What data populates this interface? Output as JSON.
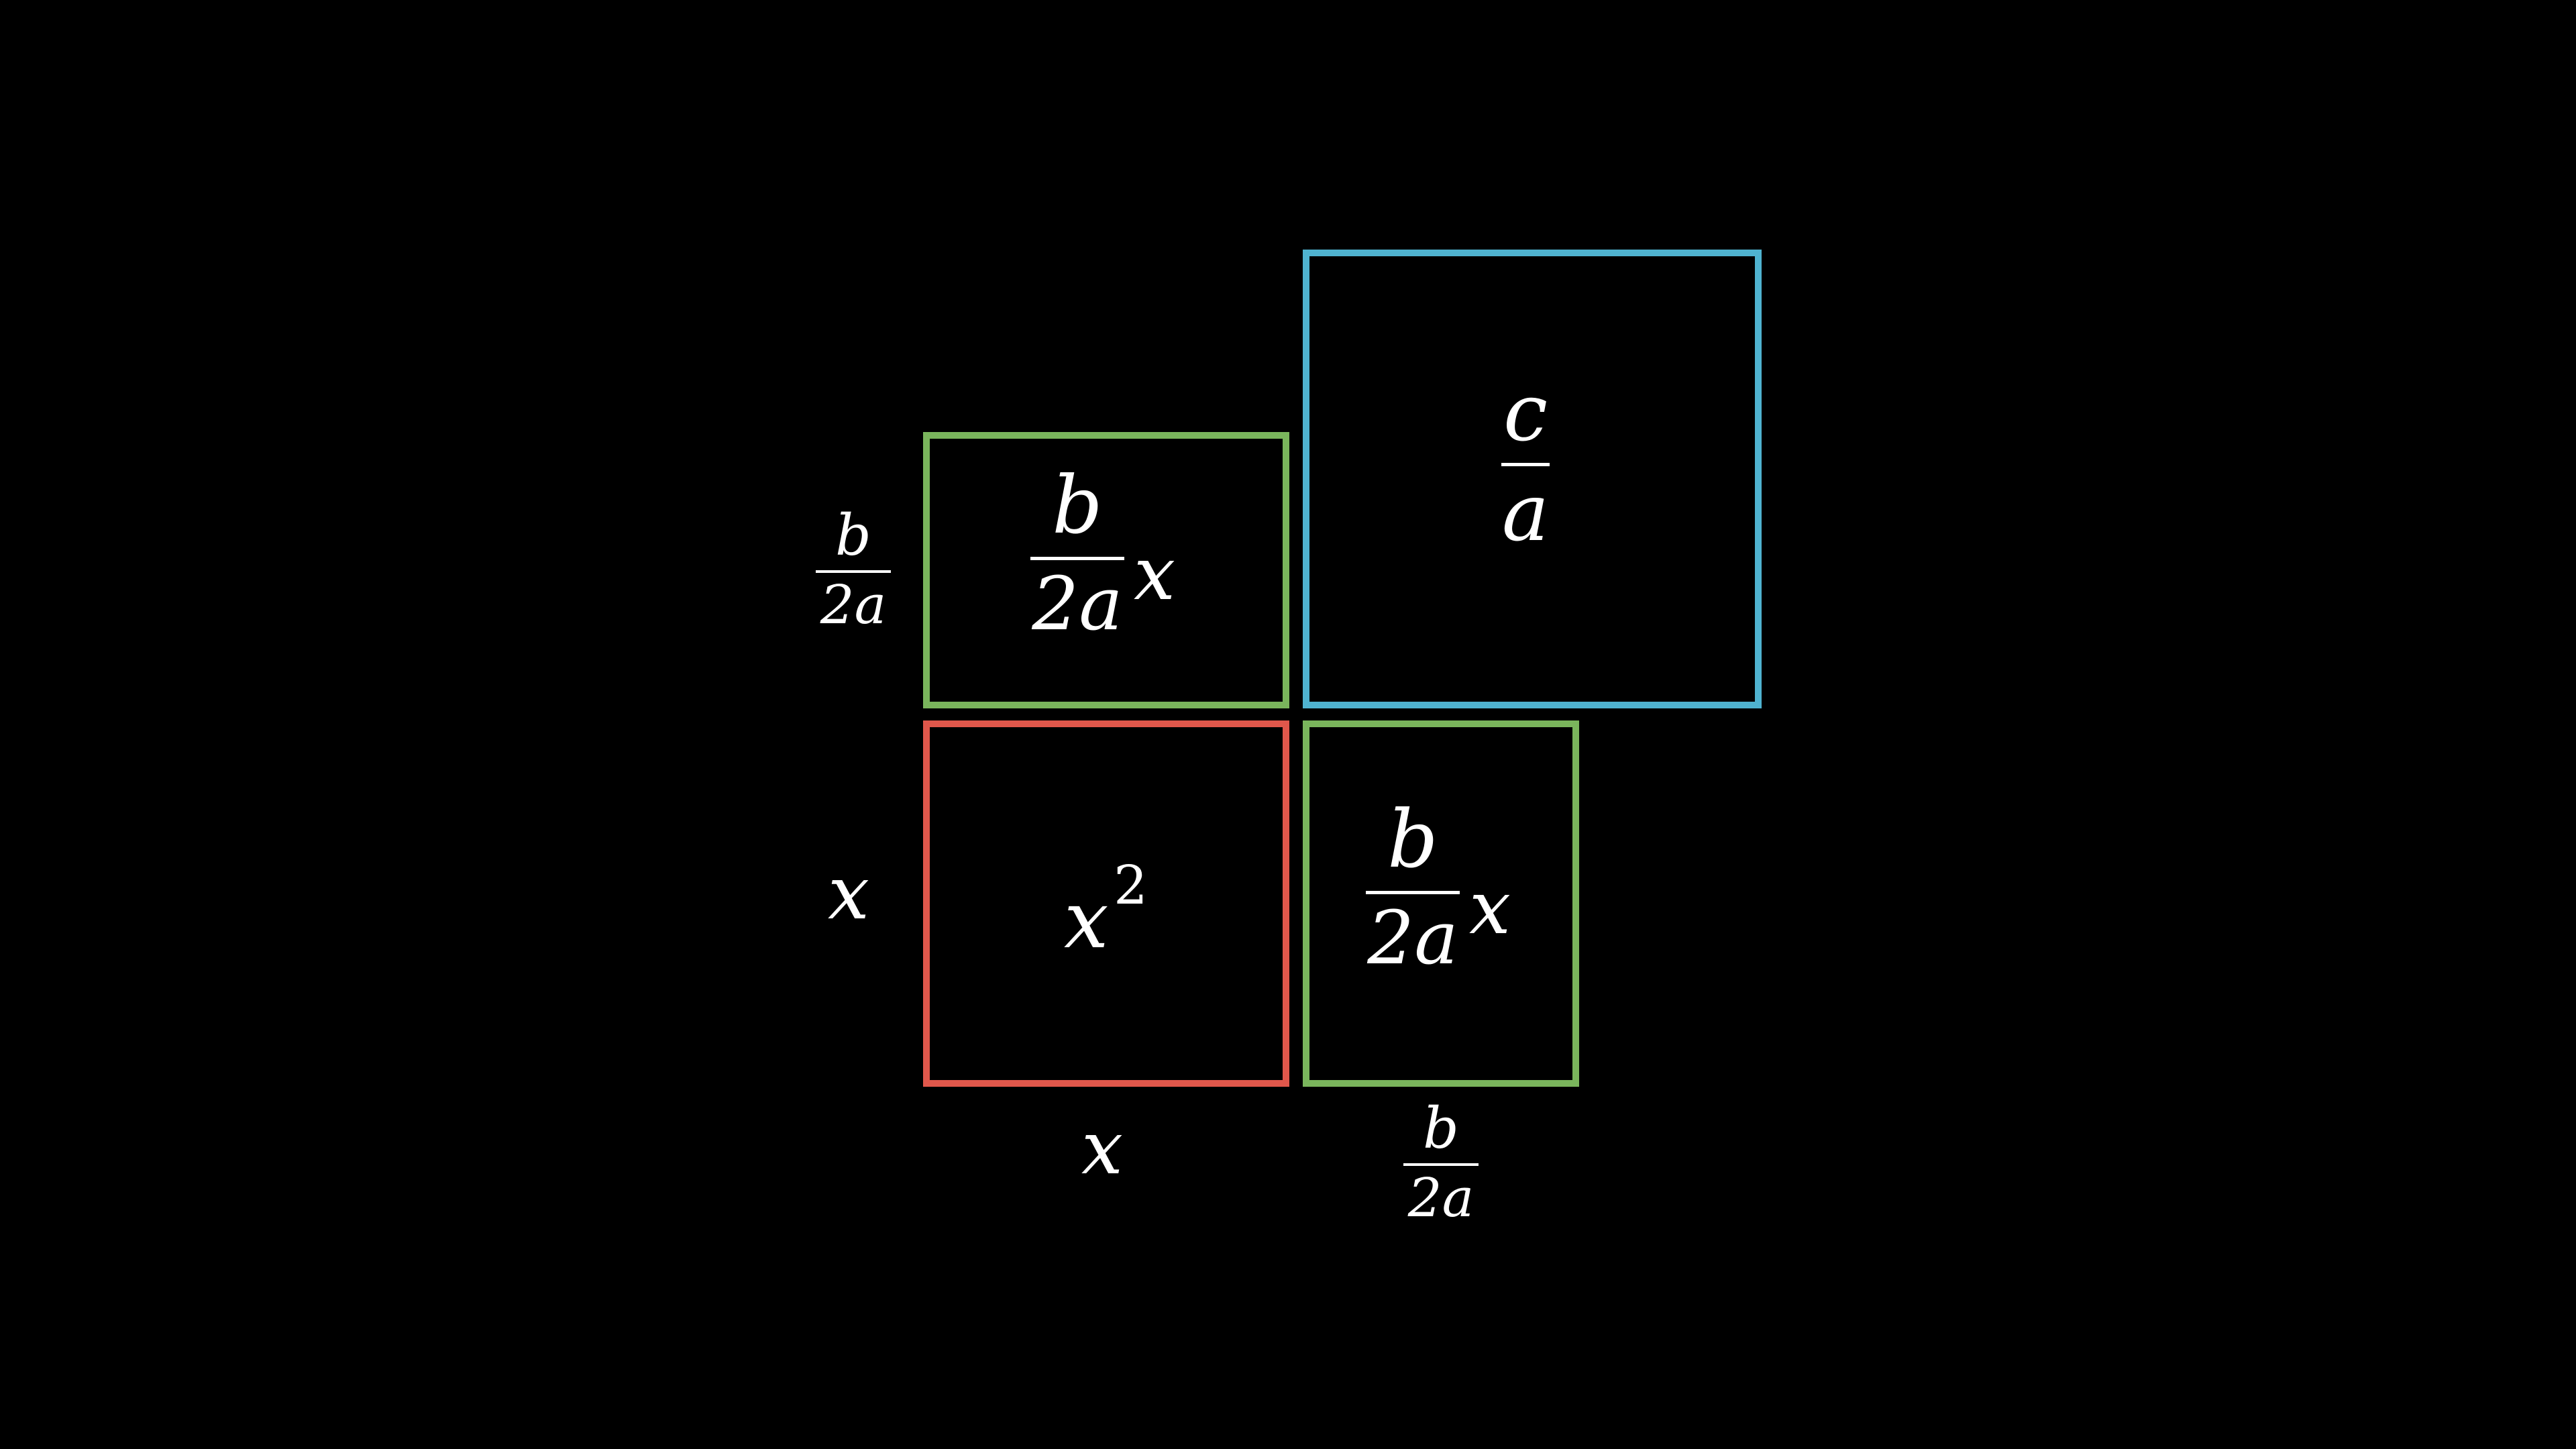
{
  "colors": {
    "background": "#000000",
    "x_squared_box": "#e0574b",
    "bx_boxes": "#7ab55c",
    "c_over_a_box": "#4fb3d0",
    "text": "#ffffff"
  },
  "boxes": {
    "x_squared": {
      "base": "x",
      "exponent": "2"
    },
    "top_bx": {
      "numerator": "b",
      "denominator": "2a",
      "factor": "x"
    },
    "right_bx": {
      "numerator": "b",
      "denominator": "2a",
      "factor": "x"
    },
    "c_over_a": {
      "numerator": "c",
      "denominator": "a"
    }
  },
  "side_labels": {
    "left_upper": {
      "numerator": "b",
      "denominator": "2a"
    },
    "left_lower": "x",
    "bottom_left": "x",
    "bottom_right": {
      "numerator": "b",
      "denominator": "2a"
    }
  }
}
